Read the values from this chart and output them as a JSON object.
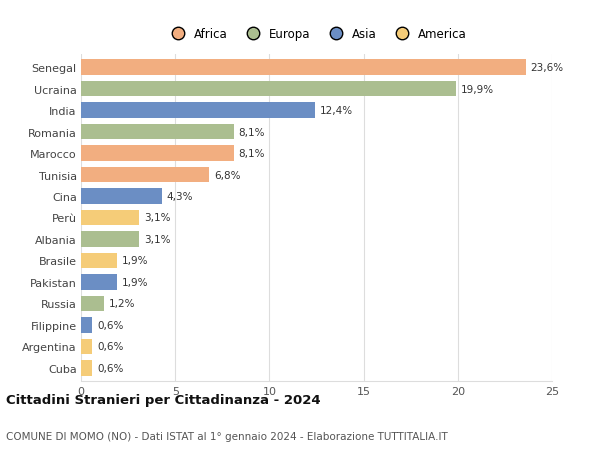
{
  "countries": [
    "Senegal",
    "Ucraina",
    "India",
    "Romania",
    "Marocco",
    "Tunisia",
    "Cina",
    "Perù",
    "Albania",
    "Brasile",
    "Pakistan",
    "Russia",
    "Filippine",
    "Argentina",
    "Cuba"
  ],
  "values": [
    23.6,
    19.9,
    12.4,
    8.1,
    8.1,
    6.8,
    4.3,
    3.1,
    3.1,
    1.9,
    1.9,
    1.2,
    0.6,
    0.6,
    0.6
  ],
  "labels": [
    "23,6%",
    "19,9%",
    "12,4%",
    "8,1%",
    "8,1%",
    "6,8%",
    "4,3%",
    "3,1%",
    "3,1%",
    "1,9%",
    "1,9%",
    "1,2%",
    "0,6%",
    "0,6%",
    "0,6%"
  ],
  "continents": [
    "Africa",
    "Europa",
    "Asia",
    "Europa",
    "Africa",
    "Africa",
    "Asia",
    "America",
    "Europa",
    "America",
    "Asia",
    "Europa",
    "Asia",
    "America",
    "America"
  ],
  "colors": {
    "Africa": "#F2AE80",
    "Europa": "#ABBE90",
    "Asia": "#6B8EC4",
    "America": "#F5CC78"
  },
  "title": "Cittadini Stranieri per Cittadinanza - 2024",
  "subtitle": "COMUNE DI MOMO (NO) - Dati ISTAT al 1° gennaio 2024 - Elaborazione TUTTITALIA.IT",
  "xlim": [
    0,
    25
  ],
  "xticks": [
    0,
    5,
    10,
    15,
    20,
    25
  ],
  "background_color": "#ffffff",
  "grid_color": "#dddddd",
  "bar_height": 0.72,
  "label_fontsize": 7.5,
  "ytick_fontsize": 8.0,
  "xtick_fontsize": 8.0,
  "title_fontsize": 9.5,
  "subtitle_fontsize": 7.5
}
